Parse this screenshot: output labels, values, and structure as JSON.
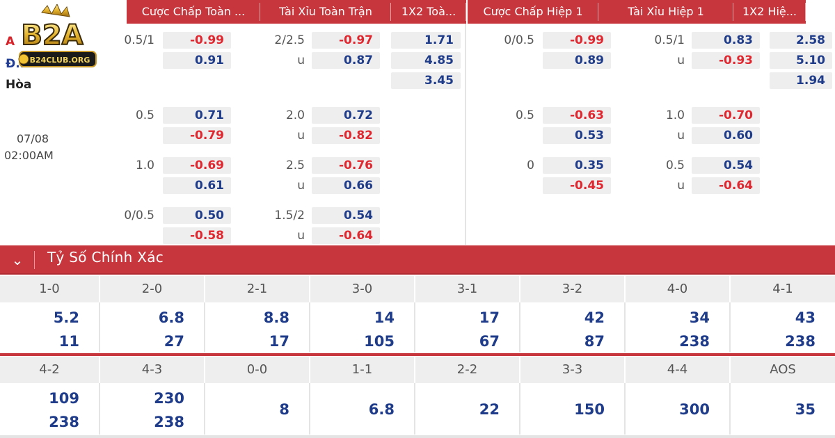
{
  "header": {
    "tabs": [
      "Cược Chấp Toàn ...",
      "Tài Xỉu Toàn Trận",
      "1X2 Toà...",
      "Cược Chấp Hiệp 1",
      "Tài Xỉu Hiệp 1",
      "1X2 Hiệ..."
    ]
  },
  "logo": {
    "text": "B2A",
    "sub": "B24CLUB.ORG"
  },
  "match": {
    "team_home": "A",
    "team_away": "Đ...",
    "draw": "Hòa",
    "date": "07/08",
    "time": "02:00AM"
  },
  "full_time": {
    "handicap_rows": [
      {
        "line": "0.5/1",
        "home": "-0.99",
        "away": "0.91"
      },
      {
        "line": "0.5",
        "home": "0.71",
        "away": "-0.79"
      },
      {
        "line": "1.0",
        "home": "-0.69",
        "away": "0.61"
      },
      {
        "line": "0/0.5",
        "home": "0.50",
        "away": "-0.58"
      }
    ],
    "ou_rows": [
      {
        "line": "2/2.5",
        "over": "-0.97",
        "u_label": "u",
        "under": "0.87"
      },
      {
        "line": "2.0",
        "over": "0.72",
        "u_label": "u",
        "under": "-0.82"
      },
      {
        "line": "2.5",
        "over": "-0.76",
        "u_label": "u",
        "under": "0.66"
      },
      {
        "line": "1.5/2",
        "over": "0.54",
        "u_label": "u",
        "under": "-0.64"
      }
    ],
    "x12": [
      "1.71",
      "4.85",
      "3.45"
    ]
  },
  "first_half": {
    "handicap_rows": [
      {
        "line": "0/0.5",
        "home": "-0.99",
        "away": "0.89"
      },
      {
        "line": "0.5",
        "home": "-0.63",
        "away": "0.53"
      },
      {
        "line": "0",
        "home": "0.35",
        "away": "-0.45"
      }
    ],
    "ou_rows": [
      {
        "line": "0.5/1",
        "over": "0.83",
        "u_label": "u",
        "under": "-0.93"
      },
      {
        "line": "1.0",
        "over": "-0.70",
        "u_label": "u",
        "under": "0.60"
      },
      {
        "line": "0.5",
        "over": "0.54",
        "u_label": "u",
        "under": "-0.64"
      }
    ],
    "x12": [
      "2.58",
      "5.10",
      "1.94"
    ]
  },
  "correct_score": {
    "title": "Tỷ Số Chính Xác",
    "toggle_icon": "chevron-down",
    "row1": [
      {
        "score": "1-0",
        "home": "5.2",
        "away": "11"
      },
      {
        "score": "2-0",
        "home": "6.8",
        "away": "27"
      },
      {
        "score": "2-1",
        "home": "8.8",
        "away": "17"
      },
      {
        "score": "3-0",
        "home": "14",
        "away": "105"
      },
      {
        "score": "3-1",
        "home": "17",
        "away": "67"
      },
      {
        "score": "3-2",
        "home": "42",
        "away": "87"
      },
      {
        "score": "4-0",
        "home": "34",
        "away": "238"
      },
      {
        "score": "4-1",
        "home": "43",
        "away": "238"
      }
    ],
    "row2": [
      {
        "score": "4-2",
        "home": "109",
        "away": "238"
      },
      {
        "score": "4-3",
        "home": "230",
        "away": "238"
      },
      {
        "score": "0-0",
        "single": "8"
      },
      {
        "score": "1-1",
        "single": "6.8"
      },
      {
        "score": "2-2",
        "single": "22"
      },
      {
        "score": "3-3",
        "single": "150"
      },
      {
        "score": "4-4",
        "single": "300"
      },
      {
        "score": "AOS",
        "single": "35"
      }
    ]
  },
  "colors": {
    "accent": "#c8363d",
    "odds_positive": "#1f3c8a",
    "odds_negative": "#e0262e",
    "box_bg": "#eeeeee"
  }
}
